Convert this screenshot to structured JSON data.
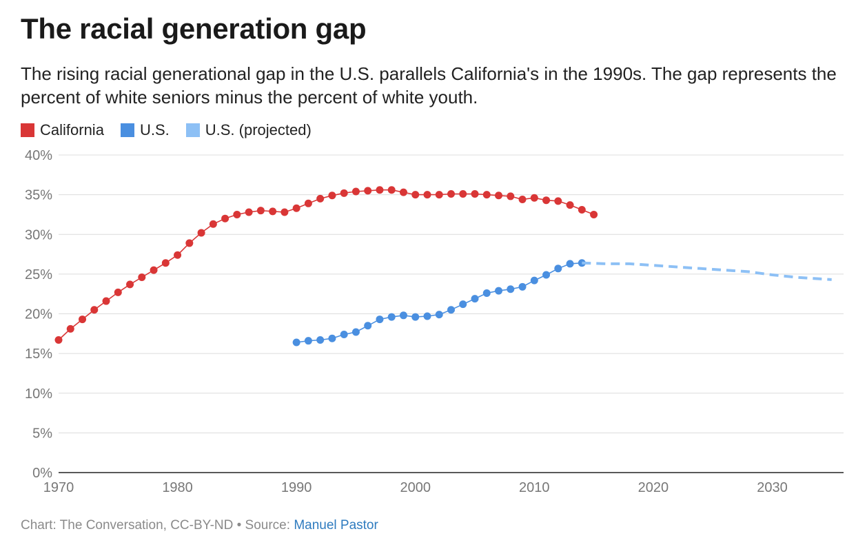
{
  "title": "The racial generation gap",
  "subtitle": "The rising racial generational gap in the U.S. parallels California's in the 1990s. The gap represents the percent of white seniors minus the percent of white youth.",
  "legend": [
    {
      "label": "California",
      "color": "#d93636"
    },
    {
      "label": "U.S.",
      "color": "#4a8fe0"
    },
    {
      "label": "U.S. (projected)",
      "color": "#8dc0f5"
    }
  ],
  "footer": {
    "credit": "Chart: The Conversation, CC-BY-ND • Source: ",
    "source_link": "Manuel Pastor"
  },
  "chart_data": {
    "type": "line",
    "xlim": [
      1970,
      2036
    ],
    "ylim": [
      0,
      40
    ],
    "x_ticks": [
      1970,
      1980,
      1990,
      2000,
      2010,
      2020,
      2030
    ],
    "y_ticks": [
      "0%",
      "5%",
      "10%",
      "15%",
      "20%",
      "25%",
      "30%",
      "35%",
      "40%"
    ],
    "y_tick_values": [
      0,
      5,
      10,
      15,
      20,
      25,
      30,
      35,
      40
    ],
    "grid": true,
    "legend_position": "top-left",
    "series": [
      {
        "name": "California",
        "color": "#d93636",
        "style": "solid-markers",
        "x": [
          1970,
          1971,
          1972,
          1973,
          1974,
          1975,
          1976,
          1977,
          1978,
          1979,
          1980,
          1981,
          1982,
          1983,
          1984,
          1985,
          1986,
          1987,
          1988,
          1989,
          1990,
          1991,
          1992,
          1993,
          1994,
          1995,
          1996,
          1997,
          1998,
          1999,
          2000,
          2001,
          2002,
          2003,
          2004,
          2005,
          2006,
          2007,
          2008,
          2009,
          2010,
          2011,
          2012,
          2013,
          2014,
          2015
        ],
        "y": [
          16.7,
          18.1,
          19.3,
          20.5,
          21.6,
          22.7,
          23.7,
          24.6,
          25.5,
          26.4,
          27.4,
          28.9,
          30.2,
          31.3,
          32.0,
          32.5,
          32.8,
          33.0,
          32.9,
          32.8,
          33.3,
          33.9,
          34.5,
          34.9,
          35.2,
          35.4,
          35.5,
          35.6,
          35.6,
          35.3,
          35.0,
          35.0,
          35.0,
          35.1,
          35.1,
          35.1,
          35.0,
          34.9,
          34.8,
          34.4,
          34.6,
          34.3,
          34.2,
          33.7,
          33.1,
          32.5
        ]
      },
      {
        "name": "U.S.",
        "color": "#4a8fe0",
        "style": "solid-markers",
        "x": [
          1990,
          1991,
          1992,
          1993,
          1994,
          1995,
          1996,
          1997,
          1998,
          1999,
          2000,
          2001,
          2002,
          2003,
          2004,
          2005,
          2006,
          2007,
          2008,
          2009,
          2010,
          2011,
          2012,
          2013,
          2014
        ],
        "y": [
          16.4,
          16.6,
          16.7,
          16.9,
          17.4,
          17.7,
          18.5,
          19.3,
          19.6,
          19.8,
          19.6,
          19.7,
          19.9,
          20.5,
          21.2,
          21.9,
          22.6,
          22.9,
          23.1,
          23.4,
          24.2,
          24.9,
          25.7,
          26.3,
          26.4
        ]
      },
      {
        "name": "U.S. (projected)",
        "color": "#8dc0f5",
        "style": "dashed",
        "x": [
          2014,
          2016,
          2018,
          2020,
          2022,
          2024,
          2026,
          2028,
          2030,
          2032,
          2034,
          2035
        ],
        "y": [
          26.4,
          26.3,
          26.3,
          26.1,
          25.9,
          25.7,
          25.5,
          25.3,
          24.9,
          24.6,
          24.4,
          24.3
        ]
      }
    ]
  }
}
